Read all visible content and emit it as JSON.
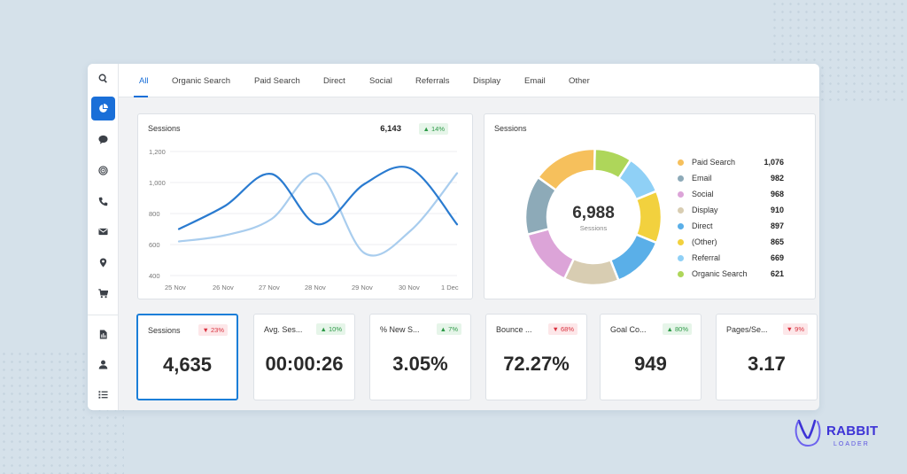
{
  "nav": {
    "tabs": [
      {
        "label": "All"
      },
      {
        "label": "Organic Search"
      },
      {
        "label": "Paid Search"
      },
      {
        "label": "Direct"
      },
      {
        "label": "Social"
      },
      {
        "label": "Referrals"
      },
      {
        "label": "Display"
      },
      {
        "label": "Email"
      },
      {
        "label": "Other"
      }
    ],
    "active_tab": "All"
  },
  "sidebar": {
    "icons": [
      "search-icon",
      "pie-chart-icon",
      "chat-icon",
      "target-icon",
      "phone-icon",
      "mail-icon",
      "location-icon",
      "cart-icon",
      "report-icon",
      "user-icon",
      "list-icon"
    ],
    "active_icon": "pie-chart-icon"
  },
  "sessions_line": {
    "title": "Sessions",
    "total": "6,143",
    "change": "▲ 14%",
    "change_direction": "up"
  },
  "sessions_donut": {
    "title": "Sessions",
    "total": "6,988",
    "sublabel": "Sessions"
  },
  "chart_data": [
    {
      "type": "line",
      "title": "Sessions",
      "x": [
        "25 Nov",
        "26 Nov",
        "27 Nov",
        "28 Nov",
        "29 Nov",
        "30 Nov",
        "1 Dec"
      ],
      "yticks": [
        "400",
        "600",
        "800",
        "1,000",
        "1,200"
      ],
      "ylim": [
        400,
        1200
      ],
      "grid": true,
      "series": [
        {
          "values": [
            700,
            850,
            1055,
            730,
            990,
            1090,
            730
          ],
          "color": "#2a7bd0"
        },
        {
          "values": [
            620,
            660,
            765,
            1055,
            545,
            690,
            1060
          ],
          "color": "#a9cdee"
        }
      ]
    },
    {
      "type": "pie",
      "title": "Sessions",
      "labels": [
        "Paid Search",
        "Email",
        "Social",
        "Display",
        "Direct",
        "(Other)",
        "Referral",
        "Organic Search"
      ],
      "values": [
        1076,
        982,
        968,
        910,
        897,
        865,
        669,
        621
      ],
      "display_values": [
        "1,076",
        "982",
        "968",
        "910",
        "897",
        "865",
        "669",
        "621"
      ],
      "colors": [
        "#f6c05c",
        "#8daab8",
        "#dca4d8",
        "#d8cdb2",
        "#5aafe8",
        "#f2d13e",
        "#8fd0f6",
        "#aed65a"
      ],
      "ring_order": [
        "Organic Search",
        "Referral",
        "(Other)",
        "Direct",
        "Display",
        "Social",
        "Email",
        "Paid Search"
      ]
    }
  ],
  "metrics": [
    {
      "label": "Sessions",
      "value": "4,635",
      "change": "▼ 23%",
      "direction": "down",
      "selected": true
    },
    {
      "label": "Avg. Ses...",
      "value": "00:00:26",
      "change": "▲ 10%",
      "direction": "up",
      "selected": false
    },
    {
      "label": "% New S...",
      "value": "3.05%",
      "change": "▲ 7%",
      "direction": "up",
      "selected": false
    },
    {
      "label": "Bounce ...",
      "value": "72.27%",
      "change": "▼ 68%",
      "direction": "down",
      "selected": false
    },
    {
      "label": "Goal Co...",
      "value": "949",
      "change": "▲ 80%",
      "direction": "up",
      "selected": false
    },
    {
      "label": "Pages/Se...",
      "value": "3.17",
      "change": "▼ 9%",
      "direction": "down",
      "selected": false
    }
  ],
  "brand": {
    "name": "RABBIT",
    "sub": "LOADER",
    "color": "#3d33d6"
  },
  "colors": {
    "accent": "#1a6fd8",
    "background": "#d5e1ea"
  }
}
